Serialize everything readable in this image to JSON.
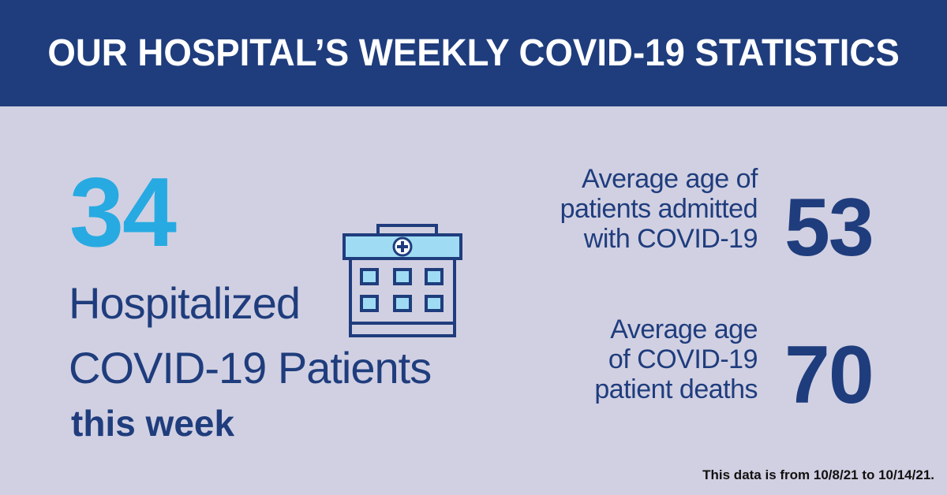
{
  "header": {
    "title": "OUR HOSPITAL’S WEEKLY COVID-19 STATISTICS"
  },
  "hospitalized": {
    "count": "34",
    "line1": "Hospitalized",
    "line2": "COVID-19 Patients",
    "line3": "this week"
  },
  "stats": [
    {
      "label_lines": [
        "Average age of",
        "patients admitted",
        "with COVID-19"
      ],
      "value": "53"
    },
    {
      "label_lines": [
        "Average age",
        "of COVID-19",
        "patient deaths"
      ],
      "value": "70"
    }
  ],
  "footnote": "This data is from 10/8/21 to 10/14/21.",
  "icons": {
    "hospital": "hospital-building-icon"
  },
  "colors": {
    "header_bg": "#1f3d7d",
    "background": "#d1d0e2",
    "accent_blue": "#27aae1",
    "navy": "#1f3d7d",
    "icon_light": "#9fdcf3"
  }
}
